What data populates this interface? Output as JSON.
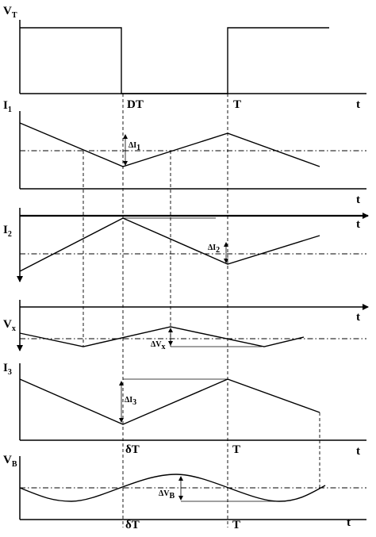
{
  "signals": [
    {
      "name": {
        "main": "V",
        "sub": "T"
      },
      "time_axis": "t",
      "markers": [
        "DT",
        "T"
      ]
    },
    {
      "name": {
        "main": "I",
        "sub": "1"
      },
      "time_axis": "t",
      "delta": {
        "main": "ΔI",
        "sub": "1"
      }
    },
    {
      "name": {
        "main": "I",
        "sub": "2"
      },
      "time_axis": "t",
      "delta": {
        "main": "ΔI",
        "sub": "2"
      }
    },
    {
      "name": {
        "main": "V",
        "sub": "x"
      },
      "time_axis": "t",
      "delta": {
        "main": "ΔV",
        "sub": "x"
      }
    },
    {
      "name": {
        "main": "I",
        "sub": "3"
      },
      "time_axis": "t",
      "delta": {
        "main": "ΔI",
        "sub": "3"
      },
      "markers": [
        "δT",
        "T"
      ]
    },
    {
      "name": {
        "main": "V",
        "sub": "B"
      },
      "time_axis": "t",
      "delta": {
        "main": "ΔV",
        "sub": "B"
      },
      "markers": [
        "δT",
        "T"
      ]
    }
  ]
}
